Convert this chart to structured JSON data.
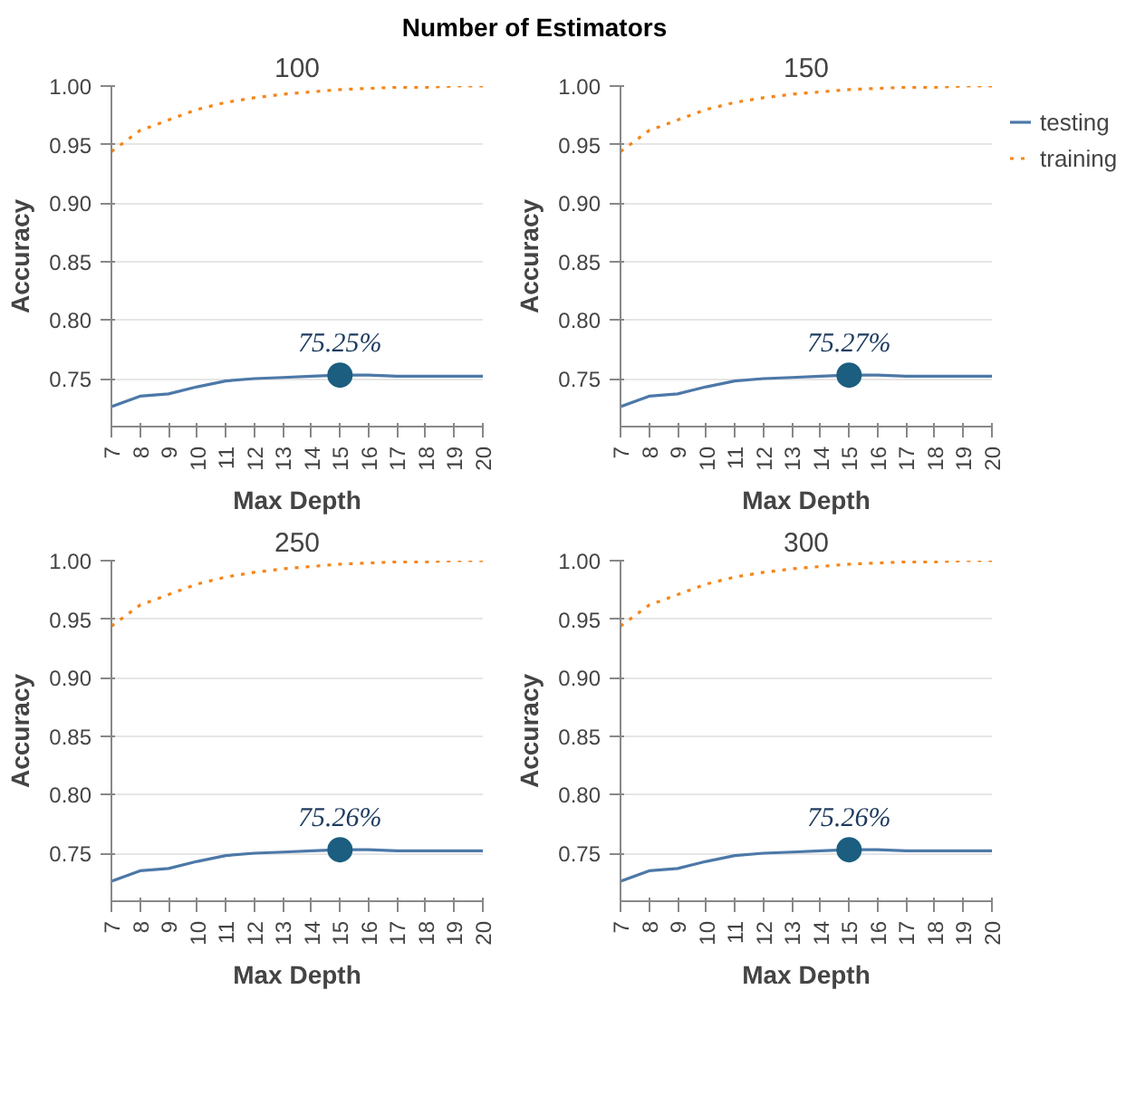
{
  "chart_data": [
    {
      "type": "line",
      "title": "100",
      "xlabel": "Max Depth",
      "ylabel": "Accuracy",
      "annotations": [
        "Number of Estimators",
        "75.25%"
      ],
      "x": [
        7,
        8,
        9,
        10,
        11,
        12,
        13,
        14,
        15,
        16,
        17,
        18,
        19,
        20
      ],
      "xlim": [
        7,
        20
      ],
      "xticks": [
        7,
        8,
        9,
        10,
        11,
        12,
        13,
        14,
        15,
        16,
        17,
        18,
        19,
        20
      ],
      "ylim": [
        0.709,
        1.0
      ],
      "yticks": [
        {
          "value": 0.75,
          "label": "0.75"
        },
        {
          "value": 0.8,
          "label": "0.80"
        },
        {
          "value": 0.85,
          "label": "0.85"
        },
        {
          "value": 0.9,
          "label": "0.90"
        },
        {
          "value": 0.95,
          "label": "0.95"
        },
        {
          "value": 1.0,
          "label": "1.00"
        }
      ],
      "grid": "y",
      "legend": false,
      "series": [
        {
          "color": "#4c78a8",
          "line_style": "solid",
          "values": [
            0.726,
            0.735,
            0.737,
            0.743,
            0.748,
            0.75,
            0.751,
            0.752,
            0.753,
            0.753,
            0.752,
            0.752,
            0.752,
            0.752
          ]
        },
        {
          "color": "#f58518",
          "line_style": "dotted",
          "values": [
            0.944,
            0.962,
            0.971,
            0.98,
            0.986,
            0.99,
            0.993,
            0.995,
            0.997,
            0.998,
            0.999,
            0.999,
            1.0,
            1.0
          ]
        },
        {
          "type": "scatter",
          "color": "#1b5e80",
          "marker": "circle",
          "values": [
            null,
            null,
            null,
            null,
            null,
            null,
            null,
            null,
            0.753,
            null,
            null,
            null,
            null,
            null
          ]
        }
      ]
    },
    {
      "type": "line",
      "title": "150",
      "xlabel": "Max Depth",
      "ylabel": "Accuracy",
      "annotations": [
        "75.27%"
      ],
      "x": [
        7,
        8,
        9,
        10,
        11,
        12,
        13,
        14,
        15,
        16,
        17,
        18,
        19,
        20
      ],
      "xlim": [
        7,
        20
      ],
      "xticks": [
        7,
        8,
        9,
        10,
        11,
        12,
        13,
        14,
        15,
        16,
        17,
        18,
        19,
        20
      ],
      "ylim": [
        0.709,
        1.0
      ],
      "yticks": [
        {
          "value": 0.75,
          "label": "0.75"
        },
        {
          "value": 0.8,
          "label": "0.80"
        },
        {
          "value": 0.85,
          "label": "0.85"
        },
        {
          "value": 0.9,
          "label": "0.90"
        },
        {
          "value": 0.95,
          "label": "0.95"
        },
        {
          "value": 1.0,
          "label": "1.00"
        }
      ],
      "grid": "y",
      "legend": "right",
      "series": [
        {
          "name": "testing",
          "color": "#4c78a8",
          "line_style": "solid",
          "values": [
            0.726,
            0.735,
            0.737,
            0.743,
            0.748,
            0.75,
            0.751,
            0.752,
            0.753,
            0.753,
            0.752,
            0.752,
            0.752,
            0.752
          ]
        },
        {
          "name": "training",
          "color": "#f58518",
          "line_style": "dotted",
          "values": [
            0.944,
            0.962,
            0.971,
            0.98,
            0.986,
            0.99,
            0.993,
            0.995,
            0.997,
            0.998,
            0.999,
            0.999,
            1.0,
            1.0
          ]
        },
        {
          "type": "scatter",
          "color": "#1b5e80",
          "marker": "circle",
          "values": [
            null,
            null,
            null,
            null,
            null,
            null,
            null,
            null,
            0.753,
            null,
            null,
            null,
            null,
            null
          ]
        }
      ]
    },
    {
      "type": "line",
      "title": "250",
      "xlabel": "Max Depth",
      "ylabel": "Accuracy",
      "annotations": [
        "75.26%"
      ],
      "x": [
        7,
        8,
        9,
        10,
        11,
        12,
        13,
        14,
        15,
        16,
        17,
        18,
        19,
        20
      ],
      "xlim": [
        7,
        20
      ],
      "xticks": [
        7,
        8,
        9,
        10,
        11,
        12,
        13,
        14,
        15,
        16,
        17,
        18,
        19,
        20
      ],
      "ylim": [
        0.709,
        1.0
      ],
      "yticks": [
        {
          "value": 0.75,
          "label": "0.75"
        },
        {
          "value": 0.8,
          "label": "0.80"
        },
        {
          "value": 0.85,
          "label": "0.85"
        },
        {
          "value": 0.9,
          "label": "0.90"
        },
        {
          "value": 0.95,
          "label": "0.95"
        },
        {
          "value": 1.0,
          "label": "1.00"
        }
      ],
      "grid": "y",
      "legend": false,
      "series": [
        {
          "color": "#4c78a8",
          "line_style": "solid",
          "values": [
            0.726,
            0.735,
            0.737,
            0.743,
            0.748,
            0.75,
            0.751,
            0.752,
            0.753,
            0.753,
            0.752,
            0.752,
            0.752,
            0.752
          ]
        },
        {
          "color": "#f58518",
          "line_style": "dotted",
          "values": [
            0.944,
            0.962,
            0.971,
            0.98,
            0.986,
            0.99,
            0.993,
            0.995,
            0.997,
            0.998,
            0.999,
            0.999,
            1.0,
            1.0
          ]
        },
        {
          "type": "scatter",
          "color": "#1b5e80",
          "marker": "circle",
          "values": [
            null,
            null,
            null,
            null,
            null,
            null,
            null,
            null,
            0.753,
            null,
            null,
            null,
            null,
            null
          ]
        }
      ]
    },
    {
      "type": "line",
      "title": "300",
      "xlabel": "Max Depth",
      "ylabel": "Accuracy",
      "annotations": [
        "75.26%"
      ],
      "x": [
        7,
        8,
        9,
        10,
        11,
        12,
        13,
        14,
        15,
        16,
        17,
        18,
        19,
        20
      ],
      "xlim": [
        7,
        20
      ],
      "xticks": [
        7,
        8,
        9,
        10,
        11,
        12,
        13,
        14,
        15,
        16,
        17,
        18,
        19,
        20
      ],
      "ylim": [
        0.709,
        1.0
      ],
      "yticks": [
        {
          "value": 0.75,
          "label": "0.75"
        },
        {
          "value": 0.8,
          "label": "0.80"
        },
        {
          "value": 0.85,
          "label": "0.85"
        },
        {
          "value": 0.9,
          "label": "0.90"
        },
        {
          "value": 0.95,
          "label": "0.95"
        },
        {
          "value": 1.0,
          "label": "1.00"
        }
      ],
      "grid": "y",
      "legend": false,
      "series": [
        {
          "color": "#4c78a8",
          "line_style": "solid",
          "values": [
            0.726,
            0.735,
            0.737,
            0.743,
            0.748,
            0.75,
            0.751,
            0.752,
            0.753,
            0.753,
            0.752,
            0.752,
            0.752,
            0.752
          ]
        },
        {
          "color": "#f58518",
          "line_style": "dotted",
          "values": [
            0.944,
            0.962,
            0.971,
            0.98,
            0.986,
            0.99,
            0.993,
            0.995,
            0.997,
            0.998,
            0.999,
            0.999,
            1.0,
            1.0
          ]
        },
        {
          "type": "scatter",
          "color": "#1b5e80",
          "marker": "circle",
          "values": [
            null,
            null,
            null,
            null,
            null,
            null,
            null,
            null,
            0.753,
            null,
            null,
            null,
            null,
            null
          ]
        }
      ]
    }
  ]
}
